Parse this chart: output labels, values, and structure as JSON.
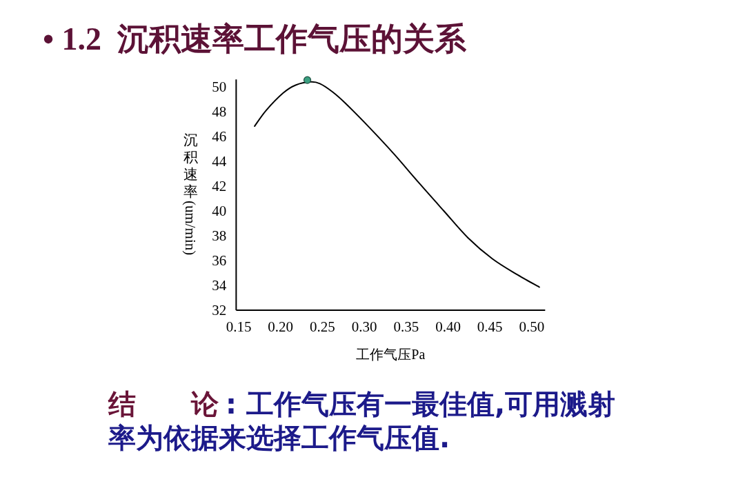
{
  "chart_data": {
    "type": "line",
    "title": "• 1.2  沉积速率工作气压的关系",
    "xlabel": "工作气压Pa",
    "ylabel": "沉积速率(um/min)",
    "annotations": [
      "结　　论",
      ": 工作气压有一最佳值,可用溅射率为依据来选择工作气压值."
    ],
    "series": [
      {
        "color": "#000000",
        "x": [
          0.169,
          0.183,
          0.203,
          0.218,
          0.236,
          0.247,
          0.262,
          0.277,
          0.306,
          0.336,
          0.365,
          0.395,
          0.424,
          0.453,
          0.483,
          0.509
        ],
        "values": [
          46.83,
          48.12,
          49.5,
          50.14,
          50.4,
          50.26,
          49.6,
          48.71,
          46.73,
          44.55,
          42.28,
          40.0,
          37.82,
          36.14,
          34.85,
          33.86
        ]
      },
      {
        "type": "scatter",
        "color": "#3a9f80",
        "marker": "circle",
        "x": [
          0.232
        ],
        "values": [
          50.55
        ]
      }
    ],
    "xlim": [
      0.147,
      0.516
    ],
    "xticks": [
      0.15,
      {
        "value": 0.2,
        "label": "0.20"
      },
      0.25,
      {
        "value": 0.3,
        "label": "0.30"
      },
      0.35,
      {
        "value": 0.4,
        "label": "0.40"
      },
      0.45,
      {
        "value": 0.5,
        "label": "0.50"
      }
    ],
    "ylim": [
      32,
      50.6
    ],
    "yticks": [
      32,
      34,
      36,
      38,
      40,
      42,
      44,
      46,
      48,
      50
    ]
  }
}
